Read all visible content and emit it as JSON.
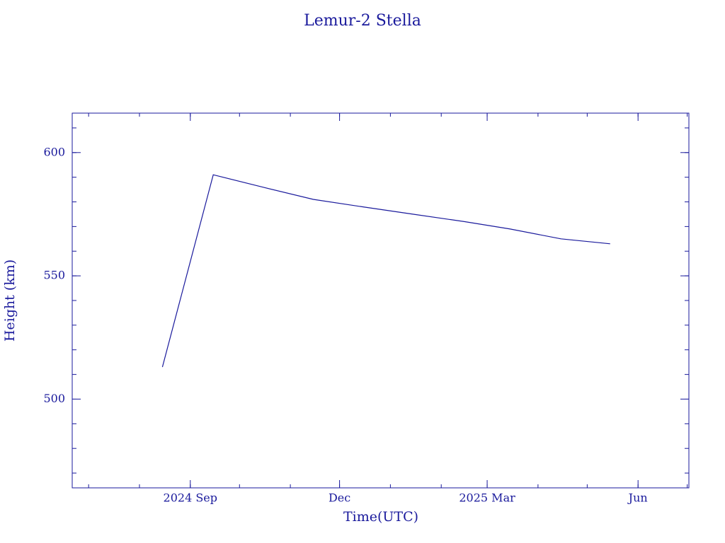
{
  "chart_data": {
    "type": "line",
    "title": "Lemur-2 Stella",
    "x_label": "Time(UTC)",
    "y_label": "Height (km)",
    "x": [
      "2024-08",
      "2024-09",
      "2024-10",
      "2024-11",
      "2024-12",
      "2025-01",
      "2025-02",
      "2025-03",
      "2025-04",
      "2025-05"
    ],
    "series": [
      {
        "name": "Height",
        "color": "#1a1a9c",
        "values": [
          513,
          591,
          586,
          581,
          578,
          575,
          572,
          569,
          565,
          563
        ]
      }
    ],
    "xlim": [
      "2024-06",
      "2025-07"
    ],
    "xticks": [
      {
        "value": "2024-09",
        "label": "2024 Sep"
      },
      {
        "value": "2024-12",
        "label": "Dec"
      },
      {
        "value": "2025-03",
        "label": "2025 Mar"
      },
      {
        "value": "2025-06",
        "label": "Jun"
      }
    ],
    "ylim": [
      464,
      616
    ],
    "yticks": [
      500,
      550,
      600
    ],
    "grid": false
  }
}
